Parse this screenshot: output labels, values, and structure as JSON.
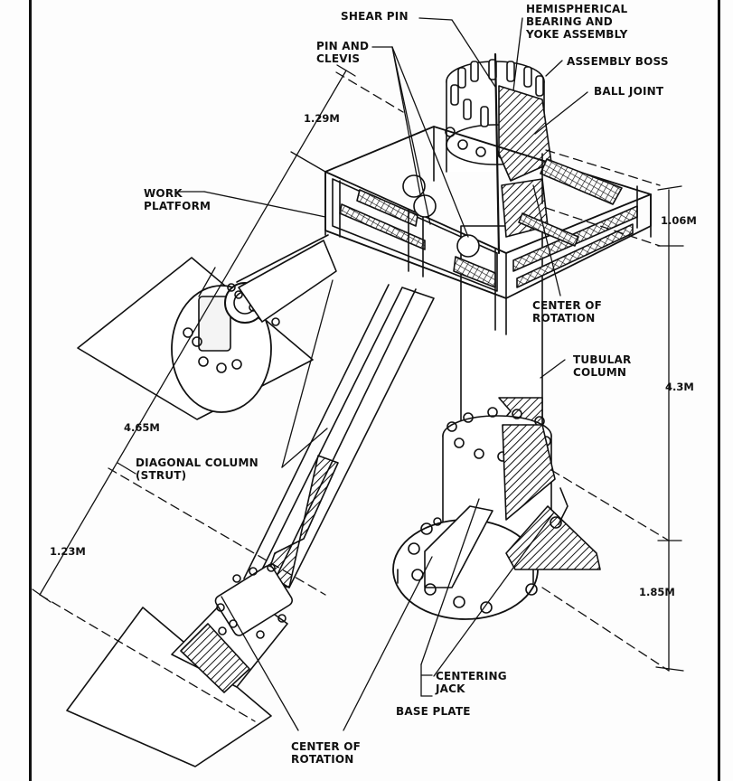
{
  "labels": {
    "shear_pin": "SHEAR PIN",
    "hemispherical_bearing": "HEMISPHERICAL\nBEARING AND\nYOKE ASSEMBLY",
    "assembly_boss": "ASSEMBLY BOSS",
    "ball_joint": "BALL JOINT",
    "pin_and_clevis": "PIN AND\nCLEVIS",
    "work_platform": "WORK\nPLATFORM",
    "center_of_rotation_top": "CENTER OF\nROTATION",
    "tubular_column": "TUBULAR\nCOLUMN",
    "diagonal_column": "DIAGONAL COLUMN\n(STRUT)",
    "centering_jack": "CENTERING\nJACK",
    "base_plate": "BASE PLATE",
    "center_of_rotation_bottom": "CENTER OF\nROTATION"
  },
  "dimensions": {
    "strut_upper": "1.29M",
    "strut_mid": "4.65M",
    "strut_lower": "1.23M",
    "column_top": "1.06M",
    "column_mid": "4.3M",
    "column_bottom": "1.85M"
  }
}
